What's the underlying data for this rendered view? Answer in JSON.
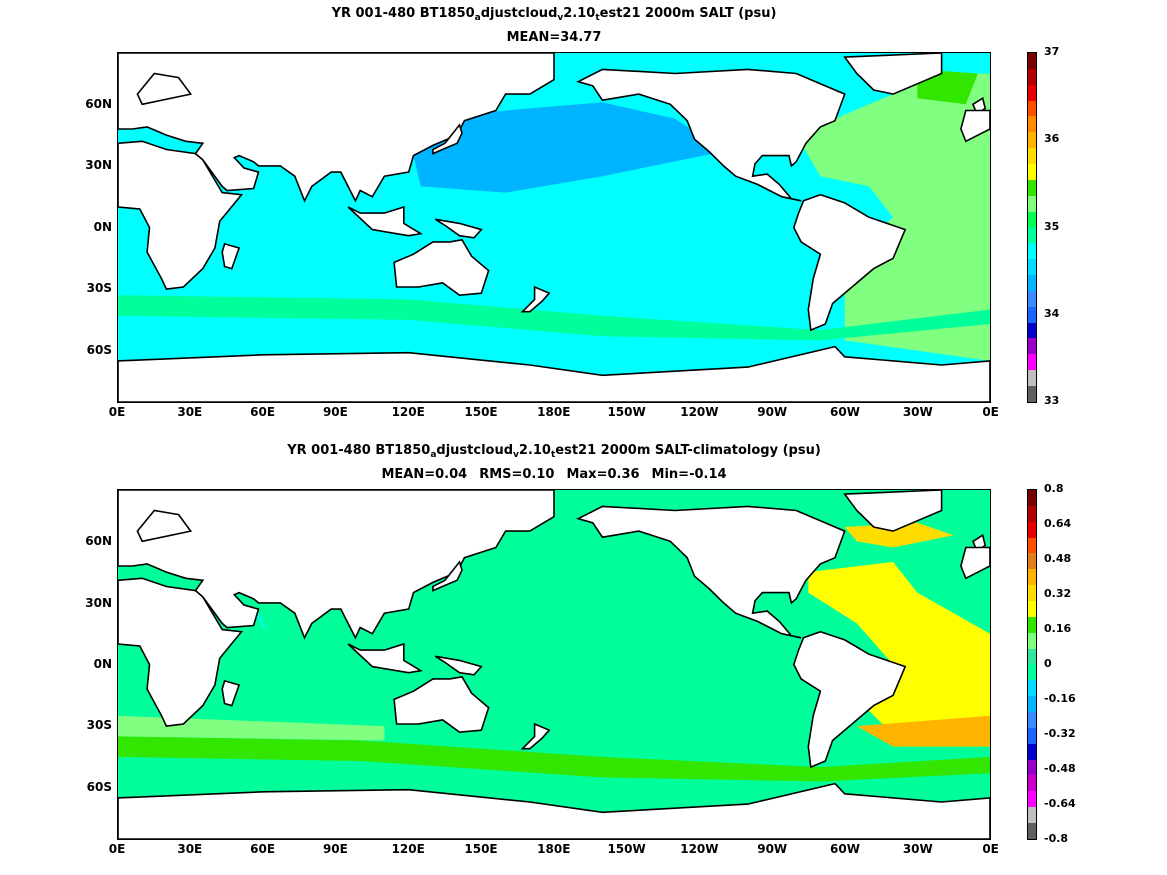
{
  "panels": [
    {
      "title_parts": [
        "YR 001-480 BT1850",
        "a",
        "djustcloud",
        "v",
        "2.10",
        "t",
        "est21 2000m SALT (psu)"
      ],
      "subtitle": "MEAN=34.77",
      "stats": [],
      "colorbar": {
        "tick_labels": [
          "37",
          "36",
          "35",
          "34",
          "33"
        ],
        "tick_values": [
          37,
          36,
          35,
          34,
          33
        ],
        "range": [
          33,
          37
        ],
        "colors": [
          "#606060",
          "#c0c0c0",
          "#ff00ff",
          "#9900cc",
          "#0000cc",
          "#1e64ff",
          "#3c8cff",
          "#00b4ff",
          "#00dcff",
          "#00ffff",
          "#00ff9a",
          "#00ff50",
          "#80ff80",
          "#33e600",
          "#ffff00",
          "#ffdc00",
          "#ffb400",
          "#ff8c00",
          "#ff5000",
          "#e60000",
          "#b40000",
          "#780000"
        ]
      }
    },
    {
      "title_parts": [
        "YR 001-480 BT1850",
        "a",
        "djustcloud",
        "v",
        "2.10",
        "t",
        "est21 2000m SALT-climatology (psu)"
      ],
      "subtitle": "",
      "stats": [
        "MEAN=0.04",
        "RMS=0.10",
        "Max=0.36",
        "Min=-0.14"
      ],
      "colorbar": {
        "tick_labels": [
          "0.8",
          "0.64",
          "0.48",
          "0.32",
          "0.16",
          "0",
          "-0.16",
          "-0.32",
          "-0.48",
          "-0.64",
          "-0.8"
        ],
        "tick_values": [
          0.8,
          0.64,
          0.48,
          0.32,
          0.16,
          0,
          -0.16,
          -0.32,
          -0.48,
          -0.64,
          -0.8
        ],
        "range": [
          -0.8,
          0.8
        ],
        "colors": [
          "#606060",
          "#c0c0c0",
          "#ff00ff",
          "#cc00cc",
          "#9900cc",
          "#0000cc",
          "#1e64ff",
          "#3c8cff",
          "#00b4ff",
          "#00dcff",
          "#00ff9a",
          "#33e6a0",
          "#80ff80",
          "#33e600",
          "#ffff00",
          "#ffdc00",
          "#ffb400",
          "#e08020",
          "#ff5000",
          "#e60000",
          "#b40000",
          "#780000"
        ]
      }
    }
  ],
  "axes": {
    "x_tick_labels": [
      "0E",
      "30E",
      "60E",
      "90E",
      "120E",
      "150E",
      "180E",
      "150W",
      "120W",
      "90W",
      "60W",
      "30W",
      "0E"
    ],
    "y_tick_labels": [
      "60N",
      "30N",
      "0N",
      "30S",
      "60S"
    ],
    "y_tick_values": [
      60,
      30,
      0,
      -30,
      -60
    ]
  },
  "colors": {
    "land": "#ffffff",
    "coast": "#000000"
  }
}
